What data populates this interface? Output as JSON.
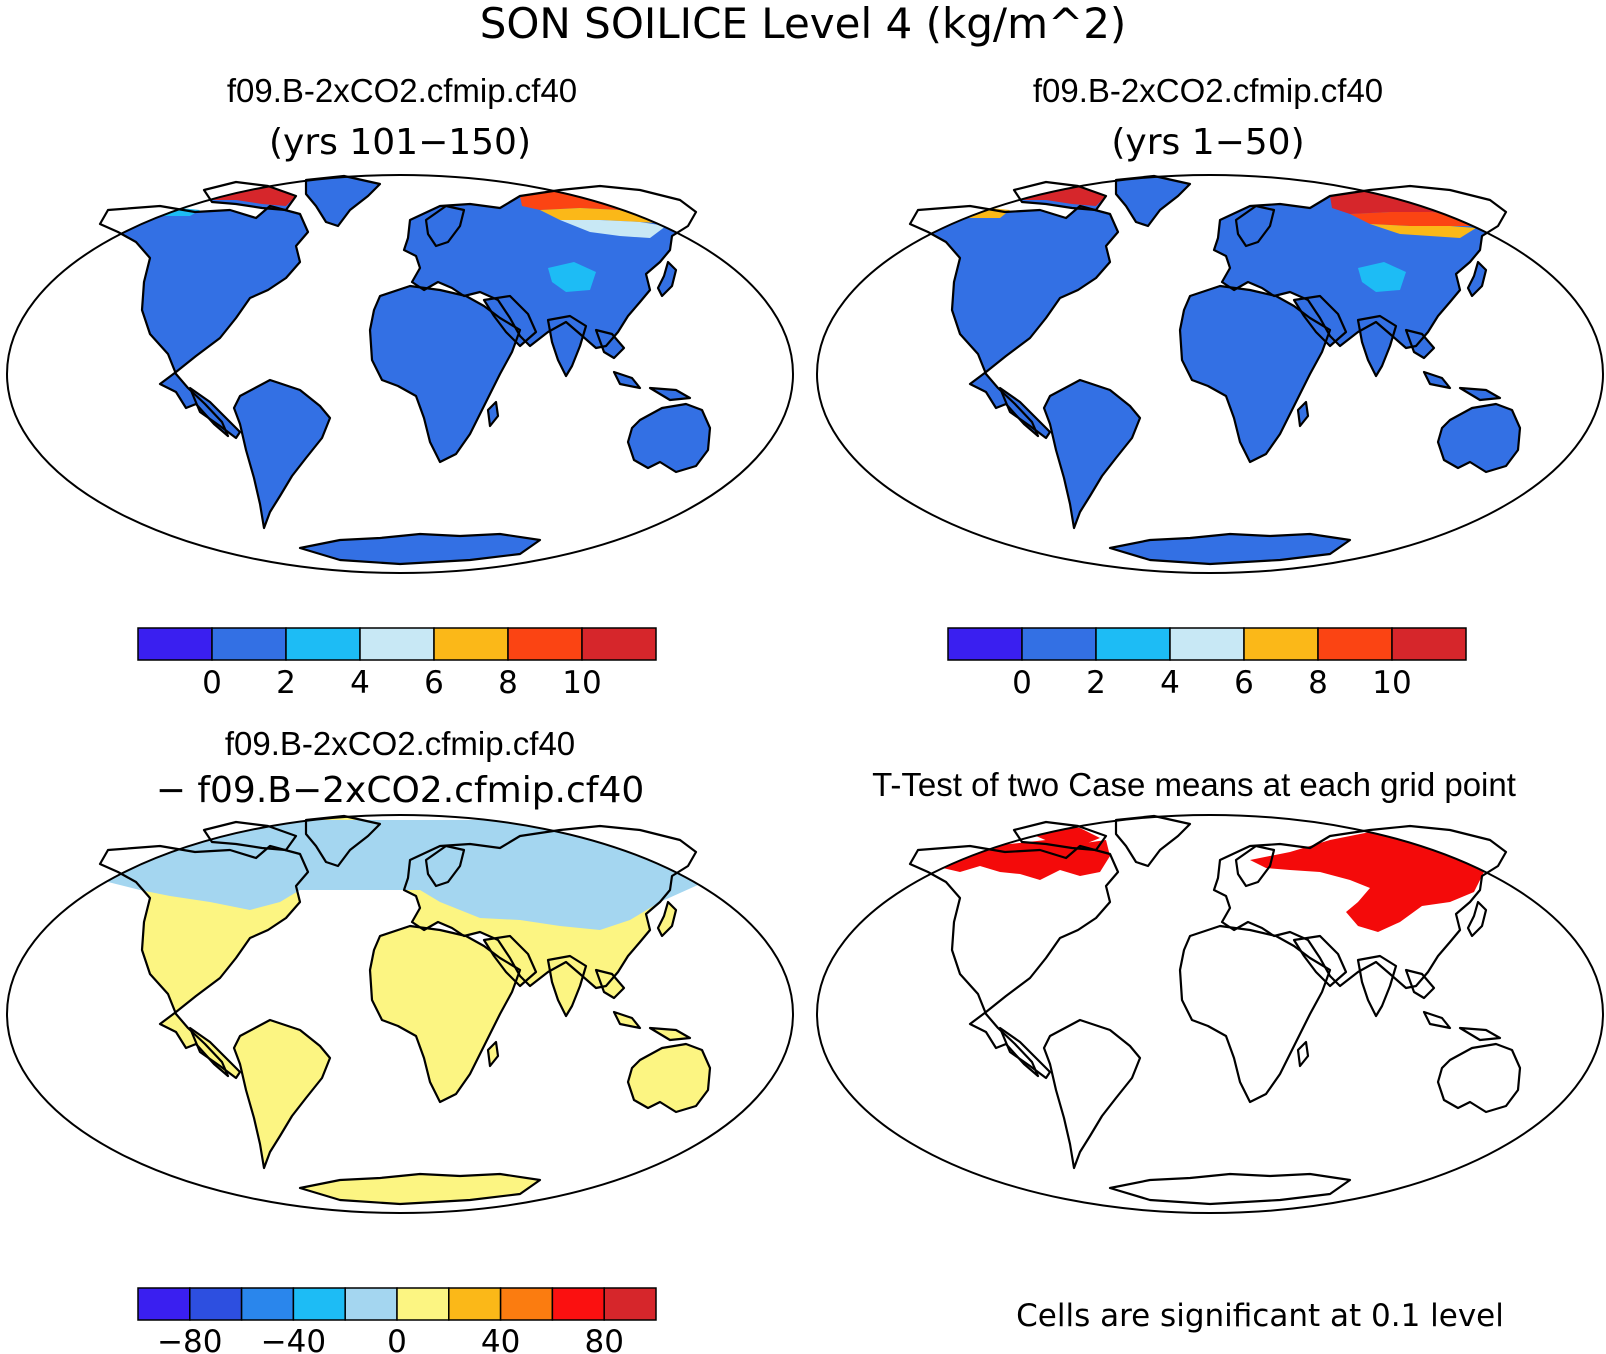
{
  "figure": {
    "title": "SON SOILICE Level 4 (kg/m^2)"
  },
  "panels": [
    {
      "id": "case1",
      "title_line1": "f09.B-2xCO2.cfmip.cf40",
      "title_line2": "(yrs 101−150)",
      "colorbar": {
        "colors": [
          "#3a1ff0",
          "#3370e4",
          "#1dbcf5",
          "#c8e8f5",
          "#fbb818",
          "#fb4413",
          "#d6262b"
        ],
        "tick_labels": [
          "0",
          "2",
          "4",
          "6",
          "8",
          "10"
        ]
      }
    },
    {
      "id": "case2",
      "title_line1": "f09.B-2xCO2.cfmip.cf40",
      "title_line2": "(yrs 1−50)",
      "colorbar": {
        "colors": [
          "#3a1ff0",
          "#3370e4",
          "#1dbcf5",
          "#c8e8f5",
          "#fbb818",
          "#fb4413",
          "#d6262b"
        ],
        "tick_labels": [
          "0",
          "2",
          "4",
          "6",
          "8",
          "10"
        ]
      }
    },
    {
      "id": "difference",
      "title_line1": "f09.B-2xCO2.cfmip.cf40",
      "title_line2": "− f09.B−2xCO2.cfmip.cf40",
      "colorbar": {
        "colors": [
          "#3a1ff0",
          "#2d4fe0",
          "#2a86ec",
          "#1dbcf5",
          "#a4d6f0",
          "#fcf582",
          "#fbb818",
          "#fb7c10",
          "#fb1010",
          "#d6262b"
        ],
        "tick_labels": [
          "−80",
          "−40",
          "0",
          "40",
          "80"
        ]
      }
    },
    {
      "id": "ttest",
      "title_line1": "T-Test of two Case means at each grid point",
      "note": "Cells are significant at 0.1 level"
    }
  ],
  "colors": {
    "land_low": "#3370e4",
    "diff_positive": "#fcf582",
    "diff_negative": "#a4d6f0",
    "significant": "#f40a0a"
  }
}
